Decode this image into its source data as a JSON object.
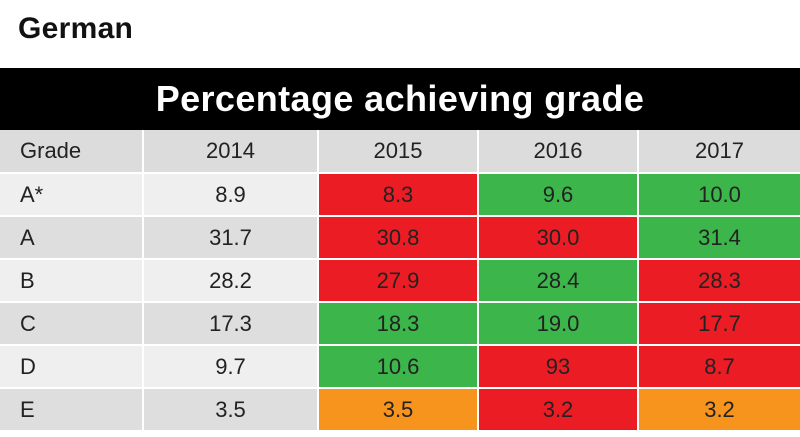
{
  "subject": "German",
  "banner_title": "Percentage achieving grade",
  "colors": {
    "header_bg": "#000000",
    "worse": "#ec1c24",
    "better": "#3cb54a",
    "same": "#f7941d"
  },
  "chart_data": {
    "type": "table",
    "title": "Percentage achieving grade",
    "columns": [
      "Grade",
      "2014",
      "2015",
      "2016",
      "2017"
    ],
    "rows": [
      {
        "grade": "A*",
        "values": [
          "8.9",
          "8.3",
          "9.6",
          "10.0"
        ],
        "colors": [
          "",
          "red",
          "green",
          "green"
        ]
      },
      {
        "grade": "A",
        "values": [
          "31.7",
          "30.8",
          "30.0",
          "31.4"
        ],
        "colors": [
          "",
          "red",
          "red",
          "green"
        ]
      },
      {
        "grade": "B",
        "values": [
          "28.2",
          "27.9",
          "28.4",
          "28.3"
        ],
        "colors": [
          "",
          "red",
          "green",
          "red"
        ]
      },
      {
        "grade": "C",
        "values": [
          "17.3",
          "18.3",
          "19.0",
          "17.7"
        ],
        "colors": [
          "",
          "green",
          "green",
          "red"
        ]
      },
      {
        "grade": "D",
        "values": [
          "9.7",
          "10.6",
          "93",
          "8.7"
        ],
        "colors": [
          "",
          "green",
          "red",
          "red"
        ]
      },
      {
        "grade": "E",
        "values": [
          "3.5",
          "3.5",
          "3.2",
          "3.2"
        ],
        "colors": [
          "",
          "orange",
          "red",
          "orange"
        ]
      }
    ]
  }
}
